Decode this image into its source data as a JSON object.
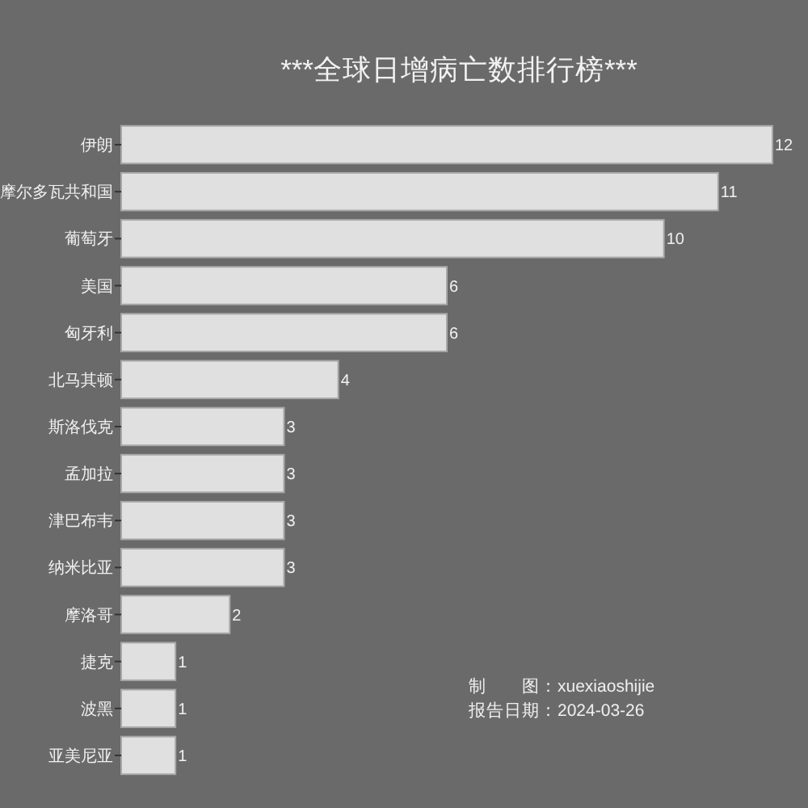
{
  "chart_data": {
    "type": "bar",
    "orientation": "horizontal",
    "title": "***全球日增病亡数排行榜***",
    "categories": [
      "伊朗",
      "摩尔多瓦共和国",
      "葡萄牙",
      "美国",
      "匈牙利",
      "北马其顿",
      "斯洛伐克",
      "孟加拉",
      "津巴布韦",
      "纳米比亚",
      "摩洛哥",
      "捷克",
      "波黑",
      "亚美尼亚"
    ],
    "values": [
      12,
      11,
      10,
      6,
      6,
      4,
      3,
      3,
      3,
      3,
      2,
      1,
      1,
      1
    ],
    "color": "#e0e0e0",
    "data_labels": true,
    "annotations": [
      "制　　图：xuexiaoshijie",
      "报告日期：2024-03-26"
    ]
  }
}
